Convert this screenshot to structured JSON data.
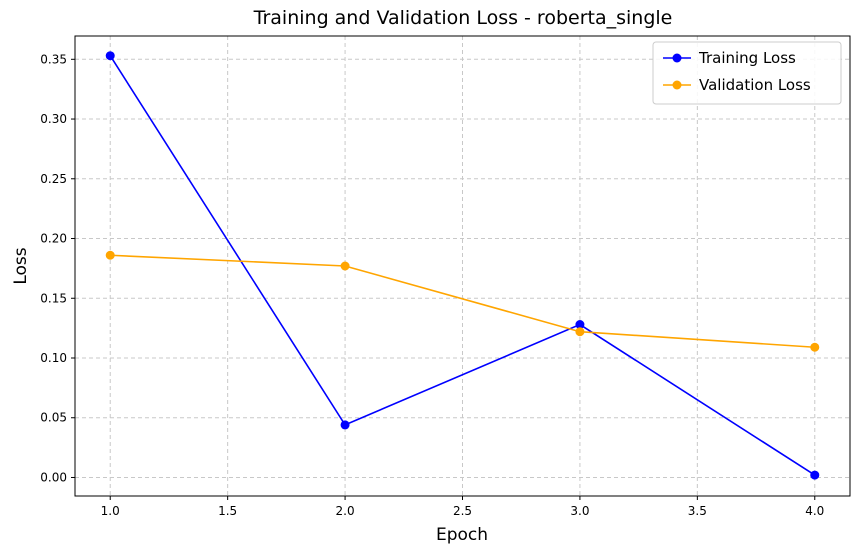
{
  "chart_data": {
    "type": "line",
    "title": "Training and Validation Loss - roberta_single",
    "xlabel": "Epoch",
    "ylabel": "Loss",
    "xlim": [
      0.85,
      4.15
    ],
    "ylim": [
      -0.0155,
      0.3695
    ],
    "xticks": [
      "1.0",
      "1.5",
      "2.0",
      "2.5",
      "3.0",
      "3.5",
      "4.0"
    ],
    "yticks": [
      "0.00",
      "0.05",
      "0.10",
      "0.15",
      "0.20",
      "0.25",
      "0.30",
      "0.35"
    ],
    "grid": true,
    "legend_position": "top-right",
    "x": [
      1,
      2,
      3,
      4
    ],
    "series": [
      {
        "name": "Training Loss",
        "color": "#0000ff",
        "values": [
          0.353,
          0.044,
          0.128,
          0.002
        ]
      },
      {
        "name": "Validation Loss",
        "color": "#ffa500",
        "values": [
          0.186,
          0.177,
          0.122,
          0.109
        ]
      }
    ]
  }
}
